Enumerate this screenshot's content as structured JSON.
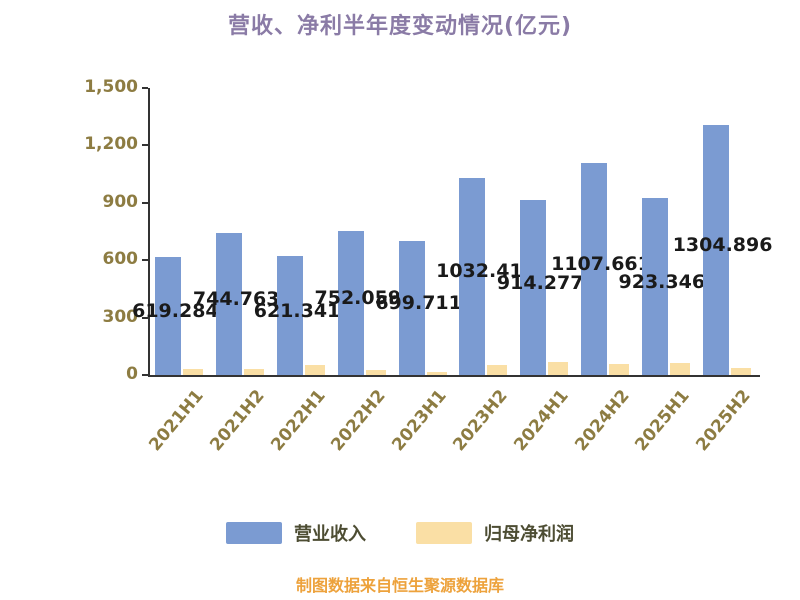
{
  "title": "营收、净利半年度变动情况(亿元)",
  "source_note": "制图数据来自恒生聚源数据库",
  "colors": {
    "revenue_bar": "#7B9BD2",
    "profit_bar": "#FADFA5",
    "title_text": "#8A7BA6",
    "axis_text": "#8D7C42",
    "legend_text": "#4D4D33",
    "source_text": "#EDA23C",
    "value_label_text": "#1A1A1A",
    "axis_line": "#333333"
  },
  "legend": {
    "items": [
      {
        "label": "营业收入",
        "color": "#7B9BD2"
      },
      {
        "label": "归母净利润",
        "color": "#FADFA5"
      }
    ]
  },
  "chart_data": {
    "type": "bar",
    "title": "营收、净利半年度变动情况(亿元)",
    "categories": [
      "2021H1",
      "2021H2",
      "2022H1",
      "2022H2",
      "2023H1",
      "2023H2",
      "2024H1",
      "2024H2",
      "2025H1",
      "2025H2"
    ],
    "series": [
      {
        "name": "营业收入",
        "color": "#7B9BD2",
        "values": [
          619.284,
          744.763,
          621.341,
          752.059,
          699.711,
          1032.41,
          914.277,
          1107.661,
          923.346,
          1304.896
        ],
        "value_labels": [
          "619.284",
          "744.763",
          "621.341",
          "752.059",
          "699.711",
          "1032.41",
          "914.277",
          "1107.661",
          "923.346",
          "1304.896"
        ]
      },
      {
        "name": "归母净利润",
        "color": "#FADFA5",
        "values": [
          32,
          30,
          53,
          26,
          16,
          53,
          68,
          58,
          63,
          37
        ]
      }
    ],
    "xlabel": "",
    "ylabel": "",
    "ylim": [
      0,
      1500
    ],
    "yticks": [
      {
        "value": 0,
        "label": "0"
      },
      {
        "value": 300,
        "label": "300"
      },
      {
        "value": 600,
        "label": "600"
      },
      {
        "value": 900,
        "label": "900"
      },
      {
        "value": 1200,
        "label": "1,200"
      },
      {
        "value": 1500,
        "label": "1,500"
      }
    ],
    "grid": false,
    "legend_position": "bottom"
  }
}
